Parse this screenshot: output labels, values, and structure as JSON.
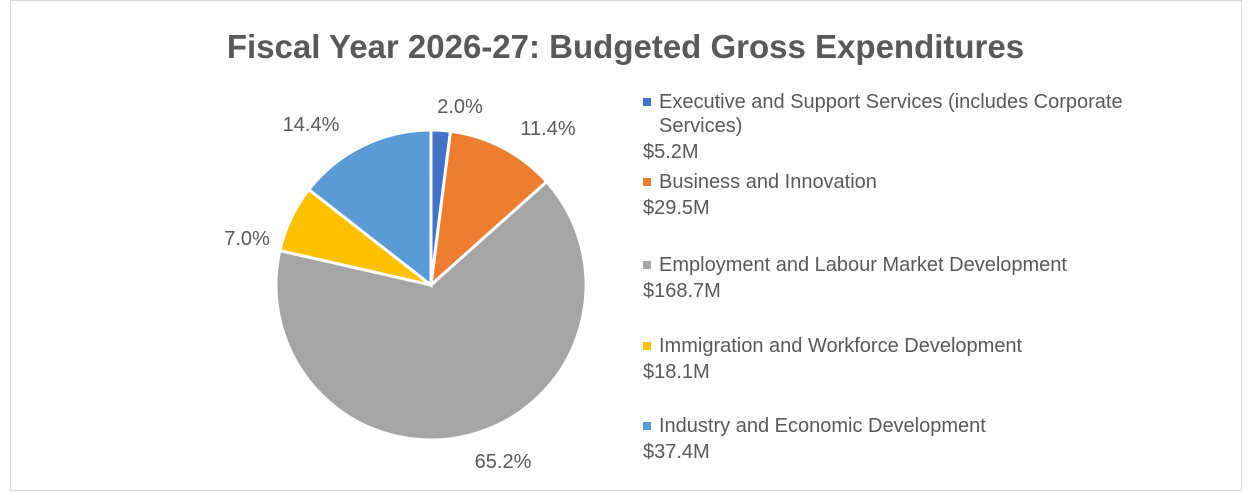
{
  "chart_data": {
    "type": "pie",
    "title": "Fiscal Year 2026-27: Budgeted Gross Expenditures",
    "categories": [
      "Executive and Support Services (includes Corporate Services)",
      "Business and Innovation",
      "Employment and Labour Market Development",
      "Immigration and Workforce Development",
      "Industry and Economic Development"
    ],
    "values": [
      5.2,
      29.5,
      168.7,
      18.1,
      37.4
    ],
    "value_labels": [
      "$5.2M",
      "$29.5M",
      "$168.7M",
      "$18.1M",
      "$37.4M"
    ],
    "percent_labels": [
      "2.0%",
      "11.4%",
      "65.2%",
      "7.0%",
      "14.4%"
    ],
    "colors": [
      "#4472c4",
      "#ed7d31",
      "#a5a5a5",
      "#ffc000",
      "#5b9bd5"
    ],
    "legend_position": "right",
    "start_angle": "12 o'clock, clockwise"
  }
}
